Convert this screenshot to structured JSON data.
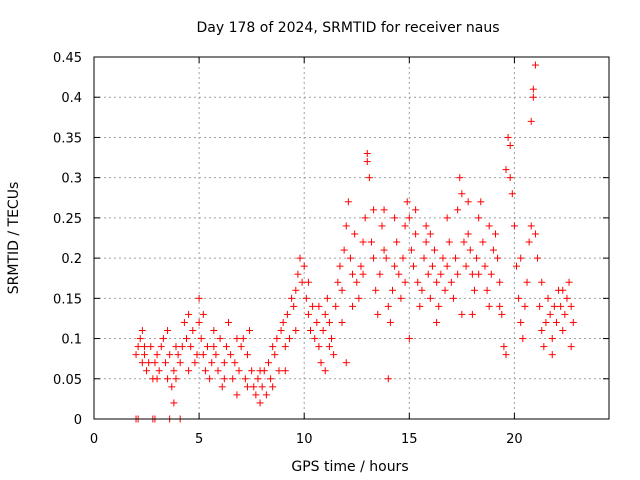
{
  "chart_data": {
    "type": "scatter",
    "title": "Day 178 of 2024, SRMTID for receiver naus",
    "xlabel": "GPS time / hours",
    "ylabel": "SRMTID / TECUs",
    "xlim": [
      0,
      24.5
    ],
    "ylim": [
      0,
      0.45
    ],
    "xticks": [
      0,
      5,
      10,
      15,
      20
    ],
    "yticks": [
      0,
      0.05,
      0.1,
      0.15,
      0.2,
      0.25,
      0.3,
      0.35,
      0.4,
      0.45
    ],
    "xtick_labels": [
      "0",
      "5",
      "10",
      "15",
      "20"
    ],
    "ytick_labels": [
      "0",
      "0.05",
      "0.1",
      "0.15",
      "0.2",
      "0.25",
      "0.3",
      "0.35",
      "0.4",
      "0.45"
    ],
    "grid": true,
    "marker": "+",
    "color": "#ff0000",
    "series": [
      {
        "name": "SRMTID",
        "points": [
          [
            2.0,
            0.0
          ],
          [
            2.1,
            0.0
          ],
          [
            2.8,
            0.0
          ],
          [
            2.9,
            0.0
          ],
          [
            3.6,
            0.0
          ],
          [
            4.1,
            0.0
          ],
          [
            2.0,
            0.08
          ],
          [
            2.1,
            0.09
          ],
          [
            2.2,
            0.1
          ],
          [
            2.3,
            0.11
          ],
          [
            2.3,
            0.07
          ],
          [
            2.4,
            0.09
          ],
          [
            2.5,
            0.06
          ],
          [
            2.6,
            0.07
          ],
          [
            2.7,
            0.09
          ],
          [
            2.8,
            0.05
          ],
          [
            2.9,
            0.07
          ],
          [
            3.0,
            0.08
          ],
          [
            3.1,
            0.06
          ],
          [
            3.2,
            0.09
          ],
          [
            3.3,
            0.1
          ],
          [
            3.4,
            0.07
          ],
          [
            3.5,
            0.05
          ],
          [
            3.5,
            0.11
          ],
          [
            3.6,
            0.08
          ],
          [
            3.7,
            0.04
          ],
          [
            3.8,
            0.06
          ],
          [
            3.8,
            0.02
          ],
          [
            3.9,
            0.05
          ],
          [
            4.0,
            0.08
          ],
          [
            4.1,
            0.07
          ],
          [
            4.2,
            0.09
          ],
          [
            4.3,
            0.12
          ],
          [
            4.4,
            0.1
          ],
          [
            4.5,
            0.13
          ],
          [
            4.6,
            0.09
          ],
          [
            4.7,
            0.11
          ],
          [
            4.8,
            0.07
          ],
          [
            4.9,
            0.08
          ],
          [
            5.0,
            0.12
          ],
          [
            5.0,
            0.15
          ],
          [
            5.1,
            0.1
          ],
          [
            5.2,
            0.08
          ],
          [
            5.3,
            0.06
          ],
          [
            5.4,
            0.09
          ],
          [
            5.5,
            0.05
          ],
          [
            5.6,
            0.07
          ],
          [
            5.7,
            0.11
          ],
          [
            5.8,
            0.08
          ],
          [
            5.9,
            0.06
          ],
          [
            6.0,
            0.1
          ],
          [
            6.1,
            0.04
          ],
          [
            6.2,
            0.07
          ],
          [
            6.3,
            0.09
          ],
          [
            6.4,
            0.12
          ],
          [
            6.5,
            0.08
          ],
          [
            6.6,
            0.05
          ],
          [
            6.7,
            0.07
          ],
          [
            6.8,
            0.03
          ],
          [
            6.9,
            0.06
          ],
          [
            7.0,
            0.09
          ],
          [
            7.1,
            0.1
          ],
          [
            7.2,
            0.05
          ],
          [
            7.3,
            0.08
          ],
          [
            7.4,
            0.11
          ],
          [
            7.5,
            0.06
          ],
          [
            7.6,
            0.04
          ],
          [
            7.7,
            0.03
          ],
          [
            7.8,
            0.05
          ],
          [
            7.9,
            0.02
          ],
          [
            8.0,
            0.04
          ],
          [
            8.1,
            0.06
          ],
          [
            8.2,
            0.03
          ],
          [
            8.3,
            0.07
          ],
          [
            8.4,
            0.05
          ],
          [
            8.5,
            0.09
          ],
          [
            8.6,
            0.08
          ],
          [
            8.7,
            0.1
          ],
          [
            8.8,
            0.06
          ],
          [
            8.9,
            0.11
          ],
          [
            9.0,
            0.12
          ],
          [
            9.1,
            0.09
          ],
          [
            9.2,
            0.13
          ],
          [
            9.3,
            0.1
          ],
          [
            9.4,
            0.15
          ],
          [
            9.5,
            0.14
          ],
          [
            9.6,
            0.16
          ],
          [
            9.7,
            0.18
          ],
          [
            9.8,
            0.2
          ],
          [
            9.9,
            0.17
          ],
          [
            10.0,
            0.19
          ],
          [
            10.1,
            0.15
          ],
          [
            10.2,
            0.13
          ],
          [
            10.3,
            0.11
          ],
          [
            10.4,
            0.14
          ],
          [
            10.5,
            0.1
          ],
          [
            10.6,
            0.12
          ],
          [
            10.7,
            0.09
          ],
          [
            10.8,
            0.07
          ],
          [
            10.9,
            0.11
          ],
          [
            11.0,
            0.13
          ],
          [
            11.1,
            0.15
          ],
          [
            11.2,
            0.12
          ],
          [
            11.3,
            0.1
          ],
          [
            11.4,
            0.08
          ],
          [
            11.5,
            0.14
          ],
          [
            11.6,
            0.17
          ],
          [
            11.7,
            0.19
          ],
          [
            11.8,
            0.16
          ],
          [
            11.9,
            0.21
          ],
          [
            12.0,
            0.24
          ],
          [
            12.1,
            0.27
          ],
          [
            12.2,
            0.2
          ],
          [
            12.3,
            0.18
          ],
          [
            12.4,
            0.23
          ],
          [
            12.5,
            0.17
          ],
          [
            12.6,
            0.15
          ],
          [
            12.7,
            0.19
          ],
          [
            12.8,
            0.22
          ],
          [
            12.9,
            0.25
          ],
          [
            13.0,
            0.33
          ],
          [
            13.1,
            0.3
          ],
          [
            13.2,
            0.22
          ],
          [
            13.3,
            0.2
          ],
          [
            13.4,
            0.16
          ],
          [
            13.5,
            0.13
          ],
          [
            13.6,
            0.18
          ],
          [
            13.7,
            0.24
          ],
          [
            13.8,
            0.26
          ],
          [
            13.9,
            0.2
          ],
          [
            14.0,
            0.14
          ],
          [
            14.1,
            0.12
          ],
          [
            14.2,
            0.16
          ],
          [
            14.3,
            0.19
          ],
          [
            14.4,
            0.22
          ],
          [
            14.5,
            0.18
          ],
          [
            14.6,
            0.15
          ],
          [
            14.7,
            0.2
          ],
          [
            14.8,
            0.24
          ],
          [
            14.9,
            0.27
          ],
          [
            15.0,
            0.25
          ],
          [
            15.1,
            0.21
          ],
          [
            15.2,
            0.19
          ],
          [
            15.3,
            0.23
          ],
          [
            15.4,
            0.17
          ],
          [
            15.5,
            0.14
          ],
          [
            15.6,
            0.16
          ],
          [
            15.7,
            0.2
          ],
          [
            15.8,
            0.22
          ],
          [
            15.9,
            0.18
          ],
          [
            16.0,
            0.15
          ],
          [
            16.1,
            0.19
          ],
          [
            16.2,
            0.21
          ],
          [
            16.3,
            0.17
          ],
          [
            16.4,
            0.14
          ],
          [
            16.5,
            0.18
          ],
          [
            16.6,
            0.2
          ],
          [
            16.7,
            0.16
          ],
          [
            16.8,
            0.19
          ],
          [
            16.9,
            0.22
          ],
          [
            17.0,
            0.17
          ],
          [
            17.1,
            0.15
          ],
          [
            17.2,
            0.2
          ],
          [
            17.3,
            0.26
          ],
          [
            17.4,
            0.3
          ],
          [
            17.5,
            0.28
          ],
          [
            17.6,
            0.22
          ],
          [
            17.7,
            0.19
          ],
          [
            17.8,
            0.23
          ],
          [
            17.9,
            0.21
          ],
          [
            18.0,
            0.18
          ],
          [
            18.1,
            0.16
          ],
          [
            18.2,
            0.2
          ],
          [
            18.3,
            0.25
          ],
          [
            18.4,
            0.27
          ],
          [
            18.5,
            0.22
          ],
          [
            18.6,
            0.19
          ],
          [
            18.7,
            0.16
          ],
          [
            18.8,
            0.14
          ],
          [
            18.9,
            0.18
          ],
          [
            19.0,
            0.21
          ],
          [
            19.1,
            0.23
          ],
          [
            19.2,
            0.2
          ],
          [
            19.3,
            0.17
          ],
          [
            19.4,
            0.13
          ],
          [
            19.5,
            0.09
          ],
          [
            19.6,
            0.31
          ],
          [
            19.7,
            0.35
          ],
          [
            19.8,
            0.34
          ],
          [
            19.9,
            0.28
          ],
          [
            20.0,
            0.24
          ],
          [
            20.1,
            0.19
          ],
          [
            20.2,
            0.15
          ],
          [
            20.3,
            0.12
          ],
          [
            20.4,
            0.1
          ],
          [
            20.5,
            0.14
          ],
          [
            20.6,
            0.17
          ],
          [
            20.7,
            0.22
          ],
          [
            20.8,
            0.24
          ],
          [
            20.9,
            0.41
          ],
          [
            21.0,
            0.44
          ],
          [
            21.1,
            0.2
          ],
          [
            21.2,
            0.14
          ],
          [
            21.3,
            0.11
          ],
          [
            21.4,
            0.09
          ],
          [
            21.5,
            0.12
          ],
          [
            21.6,
            0.15
          ],
          [
            21.7,
            0.13
          ],
          [
            21.8,
            0.1
          ],
          [
            21.9,
            0.14
          ],
          [
            22.0,
            0.12
          ],
          [
            22.1,
            0.16
          ],
          [
            22.2,
            0.14
          ],
          [
            22.3,
            0.11
          ],
          [
            22.4,
            0.13
          ],
          [
            22.5,
            0.15
          ],
          [
            22.6,
            0.17
          ],
          [
            22.7,
            0.14
          ],
          [
            22.8,
            0.12
          ],
          [
            2.4,
            0.08
          ],
          [
            3.0,
            0.05
          ],
          [
            3.9,
            0.09
          ],
          [
            4.5,
            0.06
          ],
          [
            5.2,
            0.13
          ],
          [
            5.7,
            0.09
          ],
          [
            6.2,
            0.05
          ],
          [
            6.8,
            0.1
          ],
          [
            7.3,
            0.04
          ],
          [
            7.9,
            0.06
          ],
          [
            8.5,
            0.04
          ],
          [
            9.1,
            0.06
          ],
          [
            9.6,
            0.11
          ],
          [
            10.2,
            0.17
          ],
          [
            10.7,
            0.14
          ],
          [
            11.2,
            0.09
          ],
          [
            11.8,
            0.12
          ],
          [
            12.3,
            0.14
          ],
          [
            12.8,
            0.18
          ],
          [
            13.3,
            0.26
          ],
          [
            13.8,
            0.21
          ],
          [
            14.3,
            0.25
          ],
          [
            14.8,
            0.17
          ],
          [
            15.3,
            0.26
          ],
          [
            15.8,
            0.24
          ],
          [
            16.3,
            0.12
          ],
          [
            16.8,
            0.25
          ],
          [
            17.3,
            0.18
          ],
          [
            17.8,
            0.27
          ],
          [
            18.3,
            0.18
          ],
          [
            18.8,
            0.24
          ],
          [
            19.3,
            0.14
          ],
          [
            19.8,
            0.3
          ],
          [
            20.3,
            0.2
          ],
          [
            20.8,
            0.37
          ],
          [
            21.3,
            0.17
          ],
          [
            21.8,
            0.08
          ],
          [
            22.3,
            0.16
          ],
          [
            22.7,
            0.09
          ],
          [
            19.6,
            0.08
          ],
          [
            20.9,
            0.4
          ],
          [
            13.0,
            0.32
          ],
          [
            17.5,
            0.13
          ],
          [
            16.0,
            0.23
          ],
          [
            12.0,
            0.07
          ],
          [
            11.0,
            0.06
          ],
          [
            15.0,
            0.1
          ],
          [
            14.0,
            0.05
          ],
          [
            18.0,
            0.13
          ],
          [
            21.0,
            0.23
          ]
        ]
      }
    ]
  }
}
